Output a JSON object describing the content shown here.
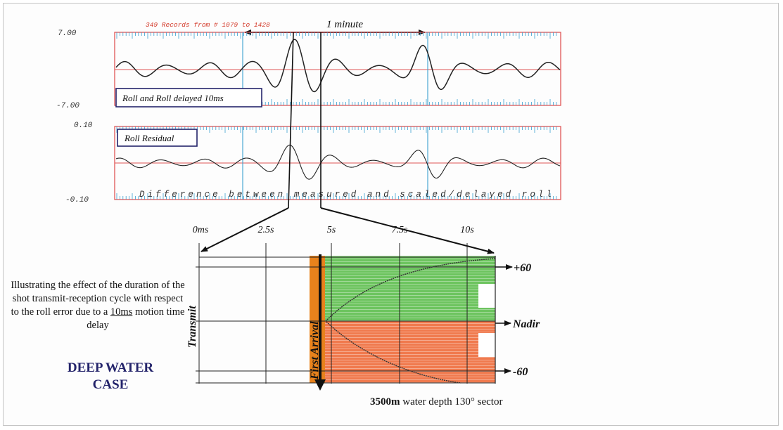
{
  "top_plot": {
    "records_header": "349 Records from # 1079 to 1428",
    "time_span": "1 minute",
    "roll": {
      "ymax": "7.00",
      "ymin": "-7.00",
      "legend": "Roll and Roll delayed 10ms"
    },
    "residual": {
      "ymax": "0.10",
      "ymin": "-0.10",
      "legend": "Roll Residual",
      "footer": "Difference between measured and scaled/delayed roll"
    },
    "colors": {
      "frame": "#e05555",
      "ticks": "#3a9fd0",
      "trace": "#222222",
      "header": "#d33a2a"
    }
  },
  "cycle_diagram": {
    "time_labels": [
      "0ms",
      "2.5s",
      "5s",
      "7.5s",
      "10s"
    ],
    "transmit_label": "Transmit",
    "first_arrival_label": "First Arrival",
    "angle_labels": [
      "+60",
      "Nadir",
      "-60"
    ],
    "colors": {
      "port": "#6dc45f",
      "starboard": "#f07a4e",
      "arrival": "#e8821c"
    }
  },
  "caption": {
    "before": "Illustrating the effect of the duration of the shot transmit-reception cycle with respect to the roll error due to a ",
    "underlined": "10ms",
    "after": " motion time delay"
  },
  "case_title_line1": "DEEP WATER",
  "case_title_line2": "CASE",
  "depth_note": {
    "value": "3500m",
    "text": " water depth 130° sector"
  }
}
